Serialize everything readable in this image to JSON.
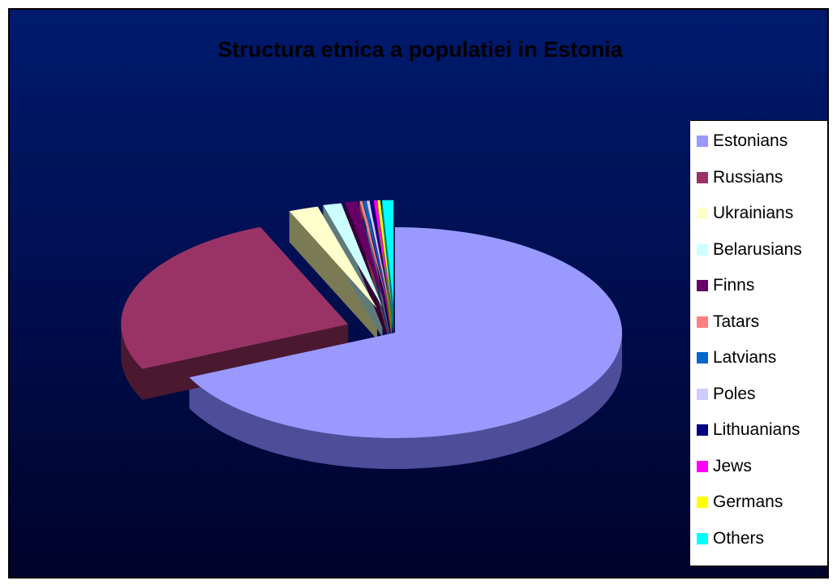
{
  "chart_data": {
    "type": "pie",
    "title": "Structura etnica a populatiei in Estonia",
    "three_d": true,
    "exploded": true,
    "legend_position": "right",
    "slices": [
      {
        "label": "Estonians",
        "value": 67.9,
        "color": "#9999ff",
        "side": "#4d4d99"
      },
      {
        "label": "Russians",
        "value": 25.6,
        "color": "#993366",
        "side": "#4a1930"
      },
      {
        "label": "Ukrainians",
        "value": 2.1,
        "color": "#ffffcc",
        "side": "#7a7a55"
      },
      {
        "label": "Belarusians",
        "value": 1.3,
        "color": "#ccffff",
        "side": "#5f7a7a"
      },
      {
        "label": "Finns",
        "value": 0.9,
        "color": "#660066",
        "side": "#330033"
      },
      {
        "label": "Tatars",
        "value": 0.2,
        "color": "#ff8080",
        "side": "#7a3d3d"
      },
      {
        "label": "Latvians",
        "value": 0.2,
        "color": "#0066cc",
        "side": "#003366"
      },
      {
        "label": "Poles",
        "value": 0.2,
        "color": "#ccccff",
        "side": "#5f5f7a"
      },
      {
        "label": "Lithuanians",
        "value": 0.2,
        "color": "#000080",
        "side": "#000040"
      },
      {
        "label": "Jews",
        "value": 0.2,
        "color": "#ff00ff",
        "side": "#7a007a"
      },
      {
        "label": "Germans",
        "value": 0.2,
        "color": "#ffff00",
        "side": "#7a7a00"
      },
      {
        "label": "Others",
        "value": 0.8,
        "color": "#00ffff",
        "side": "#007a7a"
      }
    ]
  }
}
